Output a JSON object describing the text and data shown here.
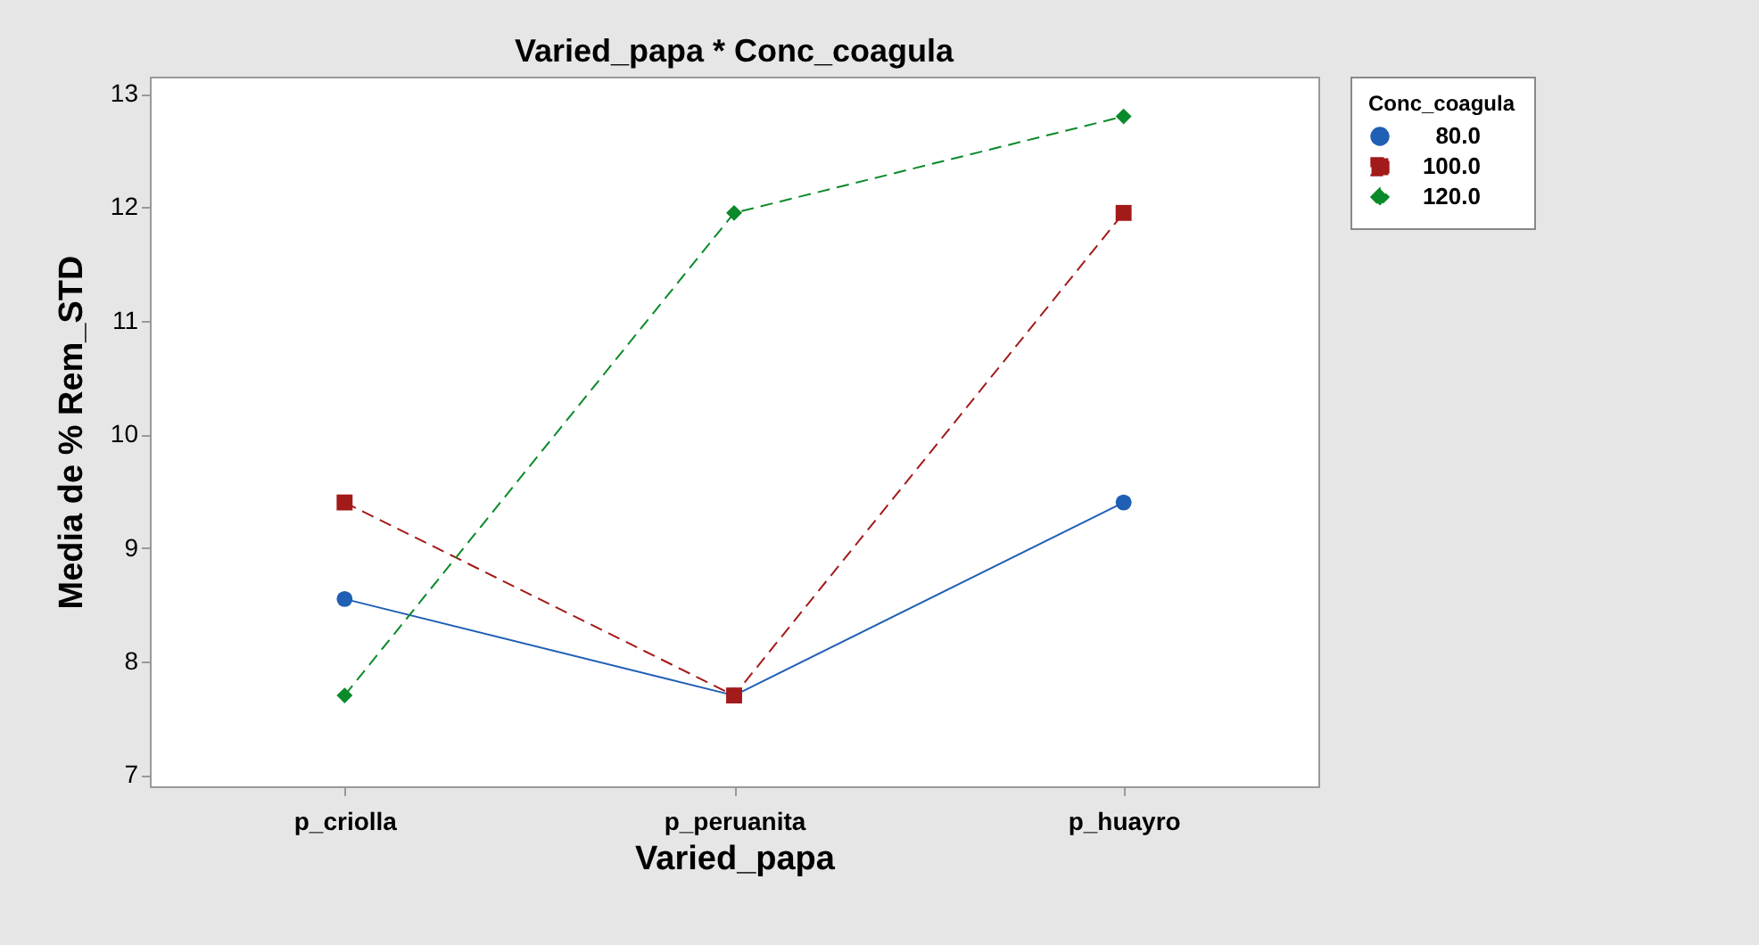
{
  "chart_data": {
    "type": "line",
    "title": "Varied_papa * Conc_coagula",
    "xlabel": "Varied_papa",
    "ylabel": "Media de % Rem_STD",
    "legend_title": "Conc_coagula",
    "categories": [
      "p_criolla",
      "p_peruanita",
      "p_huayro"
    ],
    "series": [
      {
        "name": "80.0",
        "color": "#1f5fb4",
        "marker": "circle",
        "line_style": "solid",
        "values": [
          8.55,
          7.7,
          9.4
        ]
      },
      {
        "name": "100.0",
        "color": "#a31a1a",
        "marker": "square",
        "line_style": "dashed",
        "values": [
          9.4,
          7.7,
          11.95
        ]
      },
      {
        "name": "120.0",
        "color": "#0a8a2a",
        "marker": "diamond",
        "line_style": "dashed",
        "values": [
          7.7,
          11.95,
          12.8
        ]
      }
    ],
    "ylim": [
      6.9,
      13.15
    ],
    "yticks": [
      7,
      8,
      9,
      10,
      11,
      12,
      13
    ],
    "grid": false,
    "legend": "top right"
  }
}
